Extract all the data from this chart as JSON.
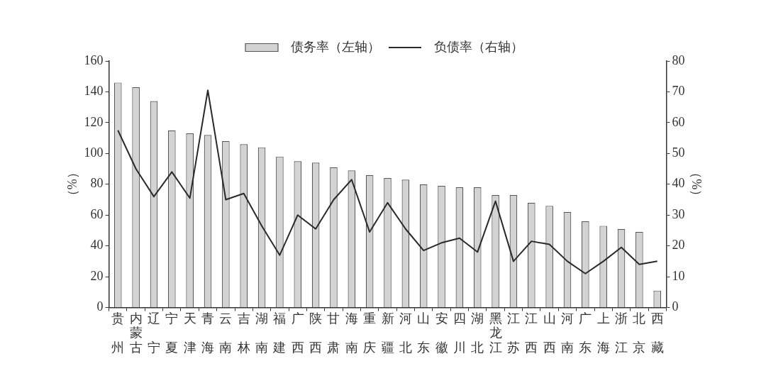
{
  "chart_data": {
    "type": "bar",
    "categories": [
      "贵州",
      "内蒙古",
      "辽宁",
      "宁夏",
      "天津",
      "青海",
      "云南",
      "吉林",
      "湖南",
      "福建",
      "广西",
      "陕西",
      "甘肃",
      "海南",
      "重庆",
      "新疆",
      "河北",
      "山东",
      "安徽",
      "四川",
      "湖北",
      "黑龙江",
      "江苏",
      "江西",
      "山西",
      "河南",
      "广东",
      "上海",
      "浙江",
      "北京",
      "西藏"
    ],
    "series": [
      {
        "name": "债务率（左轴）",
        "color": "#d3d3d3",
        "values": [
          146,
          143,
          134,
          115,
          113,
          112,
          108,
          106,
          104,
          98,
          95,
          94,
          91,
          89,
          86,
          84,
          83,
          80,
          79,
          78,
          78,
          73,
          73,
          68,
          66,
          62,
          56,
          53,
          51,
          49,
          11
        ]
      },
      {
        "name": "负债率（右轴）",
        "type": "line",
        "axis": "y2",
        "color": "#2a2a2a",
        "values": [
          57.5,
          45,
          36,
          44,
          35.5,
          70.5,
          35,
          37,
          26.5,
          17,
          30,
          25.5,
          35,
          41.5,
          24.5,
          34,
          25.5,
          18.5,
          21,
          22.5,
          18,
          34.5,
          15,
          21.5,
          20.5,
          15,
          11,
          15,
          19.5,
          14,
          15
        ]
      }
    ],
    "ylabel": "（%）",
    "y2label": "（%）",
    "ylim": [
      0,
      160
    ],
    "yticks": [
      0,
      20,
      40,
      60,
      80,
      100,
      120,
      140,
      160
    ],
    "y2lim": [
      0,
      80
    ],
    "y2ticks": [
      0,
      10,
      20,
      30,
      40,
      50,
      60,
      70,
      80
    ],
    "legend": "top",
    "marker": "none",
    "line_style": "solid"
  }
}
